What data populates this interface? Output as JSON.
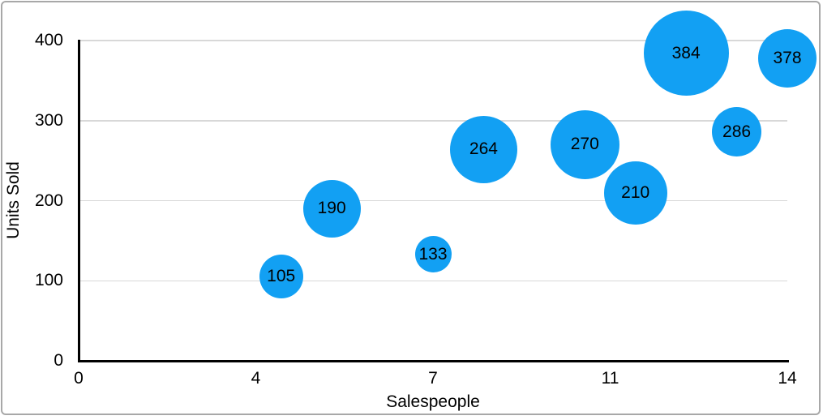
{
  "figure": {
    "background_color": "#ffffff",
    "frame_border_color": "#a8a8a8",
    "gridline_color": "#d8d8d8",
    "axis_line_color": "#000000",
    "text_color": "#000000"
  },
  "chart_data": {
    "type": "scatter",
    "variant": "bubble",
    "title": "",
    "xlabel": "Salespeople",
    "ylabel": "Units Sold",
    "xlim": [
      0,
      14
    ],
    "ylim": [
      0,
      400
    ],
    "x_tick_labels": [
      "0",
      "4",
      "7",
      "11",
      "14"
    ],
    "y_tick_labels": [
      "0",
      "100",
      "200",
      "300",
      "400"
    ],
    "grid": "horizontal-only",
    "legend": "none",
    "series": [
      {
        "name": "Units Sold",
        "color": "#12a0f3",
        "points": [
          {
            "x": 4,
            "y": 105,
            "label": "105",
            "radius_px": 27
          },
          {
            "x": 5,
            "y": 190,
            "label": "190",
            "radius_px": 35.5
          },
          {
            "x": 7,
            "y": 133,
            "label": "133",
            "radius_px": 22.5
          },
          {
            "x": 8,
            "y": 264,
            "label": "264",
            "radius_px": 41.5
          },
          {
            "x": 10,
            "y": 270,
            "label": "270",
            "radius_px": 42.5
          },
          {
            "x": 11,
            "y": 210,
            "label": "210",
            "radius_px": 39
          },
          {
            "x": 12,
            "y": 384,
            "label": "384",
            "radius_px": 52.5
          },
          {
            "x": 13,
            "y": 286,
            "label": "286",
            "radius_px": 30.5
          },
          {
            "x": 14,
            "y": 378,
            "label": "378",
            "radius_px": 36
          }
        ]
      }
    ]
  }
}
